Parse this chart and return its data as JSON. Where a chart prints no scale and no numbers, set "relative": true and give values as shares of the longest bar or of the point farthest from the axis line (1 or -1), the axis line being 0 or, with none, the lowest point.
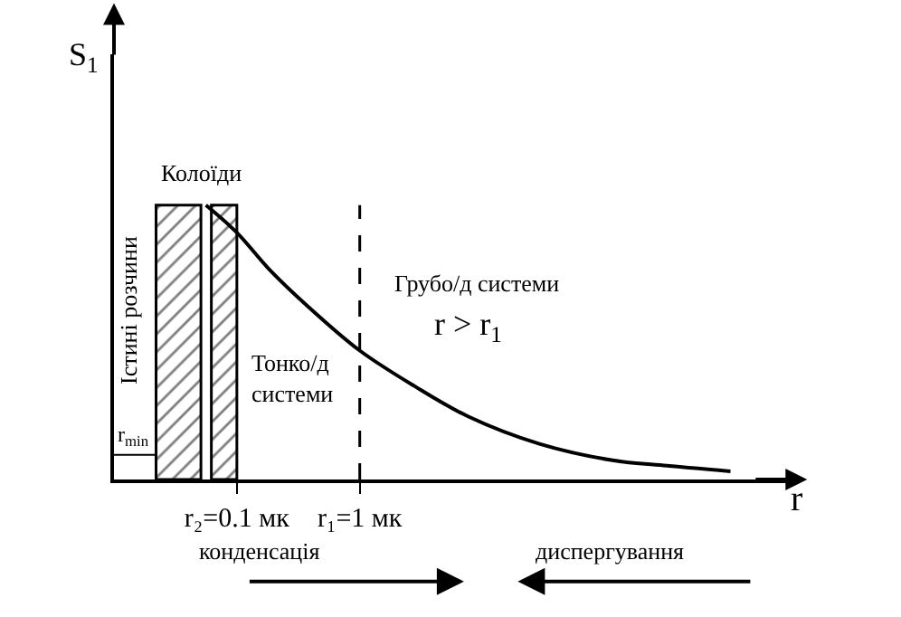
{
  "chart_data": {
    "type": "line",
    "relative": true,
    "log": "x",
    "xlabel": "r",
    "ylabel": "S$_{1}$",
    "x": [
      0.056,
      0.1,
      0.18,
      0.36,
      1,
      2.8,
      7.6,
      29,
      114,
      316,
      1040
    ],
    "series": [
      {
        "color": "#000000",
        "values": [
          1,
          0.9,
          0.77,
          0.64,
          0.47,
          0.34,
          0.23,
          0.13,
          0.07,
          0.05,
          0.03
        ]
      }
    ],
    "xlim": [
      0.01,
      3000
    ],
    "xticks": [
      {
        "value": 0.1,
        "label": "r₂=0.1 мк"
      },
      {
        "value": 1,
        "label": "r₁=1 мк"
      }
    ],
    "marker": "none",
    "line_style": "solid",
    "bands": [
      {
        "axis": "x",
        "from": 0.022,
        "to": 0.051,
        "color": "#000000"
      },
      {
        "axis": "x",
        "from": 0.062,
        "to": 0.1,
        "color": "#000000"
      }
    ],
    "ref_lines": [
      {
        "axis": "x",
        "value": 1,
        "line_style": "dashed",
        "color": "#000000"
      },
      {
        "axis": "y",
        "value": 0.09,
        "label": "r$_{min}$",
        "color": "#000000"
      }
    ],
    "annotations": [
      "Колоїди",
      "Істині розчини",
      "Тонко/д\nсистеми",
      "Грубо/д системи",
      "r > r$_{1}$",
      "конденсація",
      "диспергування"
    ]
  }
}
